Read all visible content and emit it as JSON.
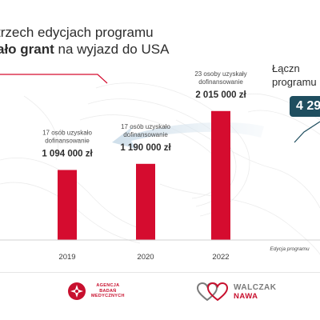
{
  "headline": {
    "line1": "trzech edycjach programu",
    "line2_bold": "ało grant",
    "line2_rest": " na wyjazd do USA"
  },
  "total": {
    "label_line1": "Łączn",
    "label_line2": "programu",
    "value": "4 29"
  },
  "footer": {
    "abm_line1": "AGENCJA",
    "abm_line2": "BADAŃ",
    "abm_line3": "MEDYCZNYCH",
    "wn_line1": "WALCZAK",
    "wn_line2": "NAWA"
  },
  "colors": {
    "bar": "#d50c2f",
    "accent_dark": "#1f4e5f",
    "arrow": "#d3e3ee"
  },
  "chart_data": {
    "type": "bar",
    "categories": [
      "2019",
      "2020",
      "2022"
    ],
    "values": [
      1094000,
      1190000,
      2015000
    ],
    "xlabel": "Edycja programu",
    "ylabel": "",
    "ylim": [
      0,
      2500000
    ],
    "grid": false,
    "annotations": [
      {
        "line1": "17 osób uzyskało",
        "line2": "dofinansowanie",
        "amount": "1 094 000 zł"
      },
      {
        "line1": "17 osób uzyskało",
        "line2": "dofinansowanie",
        "amount": "1 190 000 zł"
      },
      {
        "line1": "23 osoby uzyskały",
        "line2": "dofinansowanie",
        "amount": "2 015 000 zł"
      }
    ]
  }
}
